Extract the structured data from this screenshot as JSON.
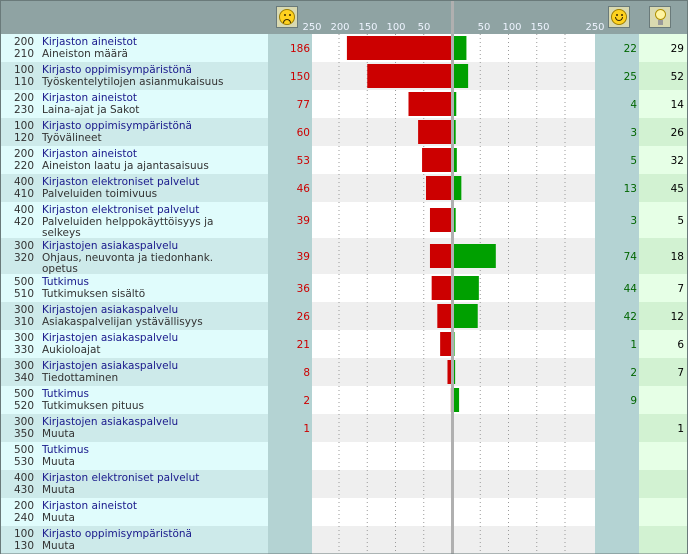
{
  "chart_data": {
    "type": "bar",
    "axis_ticks": [
      "250",
      "200",
      "150",
      "100",
      "50",
      "",
      "50",
      "100",
      "150",
      "250"
    ],
    "axis_max": 250,
    "rows": [
      {
        "cat_code": "200",
        "category": "Kirjaston aineistot",
        "sub_code": "210",
        "subcategory": "Aineiston määrä",
        "negative": 186,
        "positive": 22,
        "ideas": 29
      },
      {
        "cat_code": "100",
        "category": "Kirjasto oppimisympäristönä",
        "sub_code": "110",
        "subcategory": "Työskentelytilojen asianmukaisuus",
        "negative": 150,
        "positive": 25,
        "ideas": 52
      },
      {
        "cat_code": "200",
        "category": "Kirjaston aineistot",
        "sub_code": "230",
        "subcategory": "Laina-ajat ja Sakot",
        "negative": 77,
        "positive": 4,
        "ideas": 14
      },
      {
        "cat_code": "100",
        "category": "Kirjasto oppimisympäristönä",
        "sub_code": "120",
        "subcategory": "Työvälineet",
        "negative": 60,
        "positive": 3,
        "ideas": 26
      },
      {
        "cat_code": "200",
        "category": "Kirjaston aineistot",
        "sub_code": "220",
        "subcategory": "Aineiston laatu ja ajantasaisuus",
        "negative": 53,
        "positive": 5,
        "ideas": 32
      },
      {
        "cat_code": "400",
        "category": "Kirjaston elektroniset palvelut",
        "sub_code": "410",
        "subcategory": "Palveluiden toimivuus",
        "negative": 46,
        "positive": 13,
        "ideas": 45
      },
      {
        "cat_code": "400",
        "category": "Kirjaston elektroniset palvelut",
        "sub_code": "420",
        "subcategory": "Palveluiden helppokäyttöisyys ja selkeys",
        "negative": 39,
        "positive": 3,
        "ideas": 5
      },
      {
        "cat_code": "300",
        "category": "Kirjastojen asiakaspalvelu",
        "sub_code": "320",
        "subcategory": "Ohjaus, neuvonta ja tiedonhank. opetus",
        "negative": 39,
        "positive": 74,
        "ideas": 18
      },
      {
        "cat_code": "500",
        "category": "Tutkimus",
        "sub_code": "510",
        "subcategory": "Tutkimuksen sisältö",
        "negative": 36,
        "positive": 44,
        "ideas": 7
      },
      {
        "cat_code": "300",
        "category": "Kirjastojen asiakaspalvelu",
        "sub_code": "310",
        "subcategory": "Asiakaspalvelijan ystävällisyys",
        "negative": 26,
        "positive": 42,
        "ideas": 12
      },
      {
        "cat_code": "300",
        "category": "Kirjastojen asiakaspalvelu",
        "sub_code": "330",
        "subcategory": "Aukioloajat",
        "negative": 21,
        "positive": 1,
        "ideas": 6
      },
      {
        "cat_code": "300",
        "category": "Kirjastojen asiakaspalvelu",
        "sub_code": "340",
        "subcategory": "Tiedottaminen",
        "negative": 8,
        "positive": 2,
        "ideas": 7
      },
      {
        "cat_code": "500",
        "category": "Tutkimus",
        "sub_code": "520",
        "subcategory": "Tutkimuksen pituus",
        "negative": 2,
        "positive": 9,
        "ideas": null
      },
      {
        "cat_code": "300",
        "category": "Kirjastojen asiakaspalvelu",
        "sub_code": "350",
        "subcategory": "Muuta",
        "negative": 1,
        "positive": null,
        "ideas": 1
      },
      {
        "cat_code": "500",
        "category": "Tutkimus",
        "sub_code": "530",
        "subcategory": "Muuta",
        "negative": null,
        "positive": null,
        "ideas": null
      },
      {
        "cat_code": "400",
        "category": "Kirjaston elektroniset palvelut",
        "sub_code": "430",
        "subcategory": "Muuta",
        "negative": null,
        "positive": null,
        "ideas": null
      },
      {
        "cat_code": "200",
        "category": "Kirjaston aineistot",
        "sub_code": "240",
        "subcategory": "Muuta",
        "negative": null,
        "positive": null,
        "ideas": null
      },
      {
        "cat_code": "100",
        "category": "Kirjasto oppimisympäristönä",
        "sub_code": "130",
        "subcategory": "Muuta",
        "negative": null,
        "positive": null,
        "ideas": null
      }
    ]
  },
  "colors": {
    "negative": "#cc0000",
    "positive": "#00a000",
    "label_bg_a": "#e0fcfc",
    "label_bg_b": "#cdeaea",
    "ideas_bg_a": "#e6ffe6",
    "ideas_bg_b": "#d2f2d2",
    "num_col": "#b4d3d3",
    "header": "#8fa3a3",
    "cat_text": "#1a1a8c",
    "sub_text": "#333333",
    "neg_text": "#cc0000",
    "pos_text": "#006600",
    "idea_text": "#000000"
  },
  "icons": {
    "negative": "sad-face-icon",
    "positive": "happy-face-icon",
    "ideas": "lightbulb-icon"
  }
}
